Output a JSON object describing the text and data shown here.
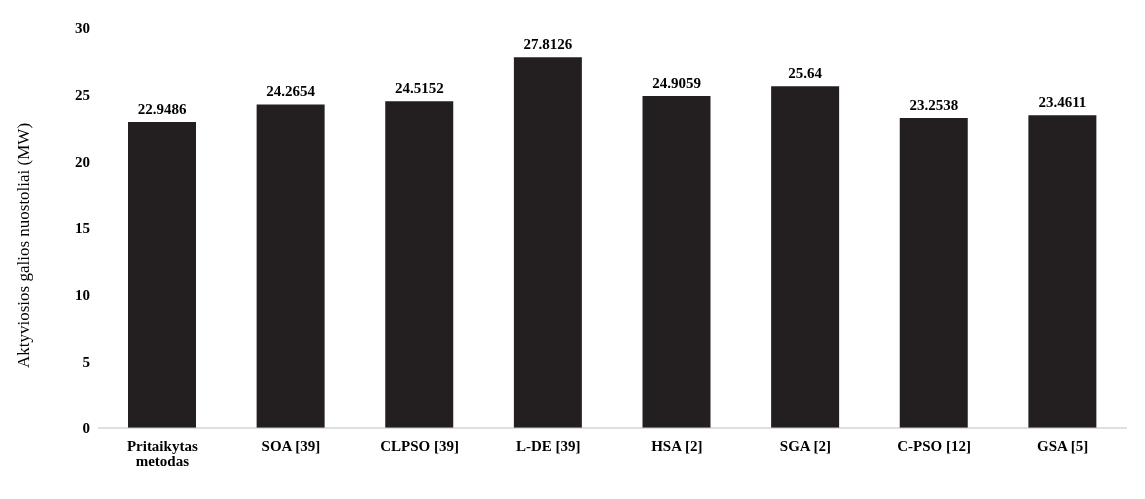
{
  "chart_data": {
    "type": "bar",
    "ylabel": "Aktyviosios galios nuostoliai (MW)",
    "categories": [
      "Pritaikytas metodas",
      "SOA [39]",
      "CLPSO [39]",
      "L-DE [39]",
      "HSA [2]",
      "SGA [2]",
      "C-PSO [12]",
      "GSA [5]"
    ],
    "values": [
      22.9486,
      24.2654,
      24.5152,
      27.8126,
      24.9059,
      25.64,
      23.2538,
      23.4611
    ],
    "color": "#231f20",
    "ylim": [
      0,
      30
    ],
    "yticks": [
      0,
      5,
      10,
      15,
      20,
      25,
      30
    ],
    "data_labels": true
  }
}
